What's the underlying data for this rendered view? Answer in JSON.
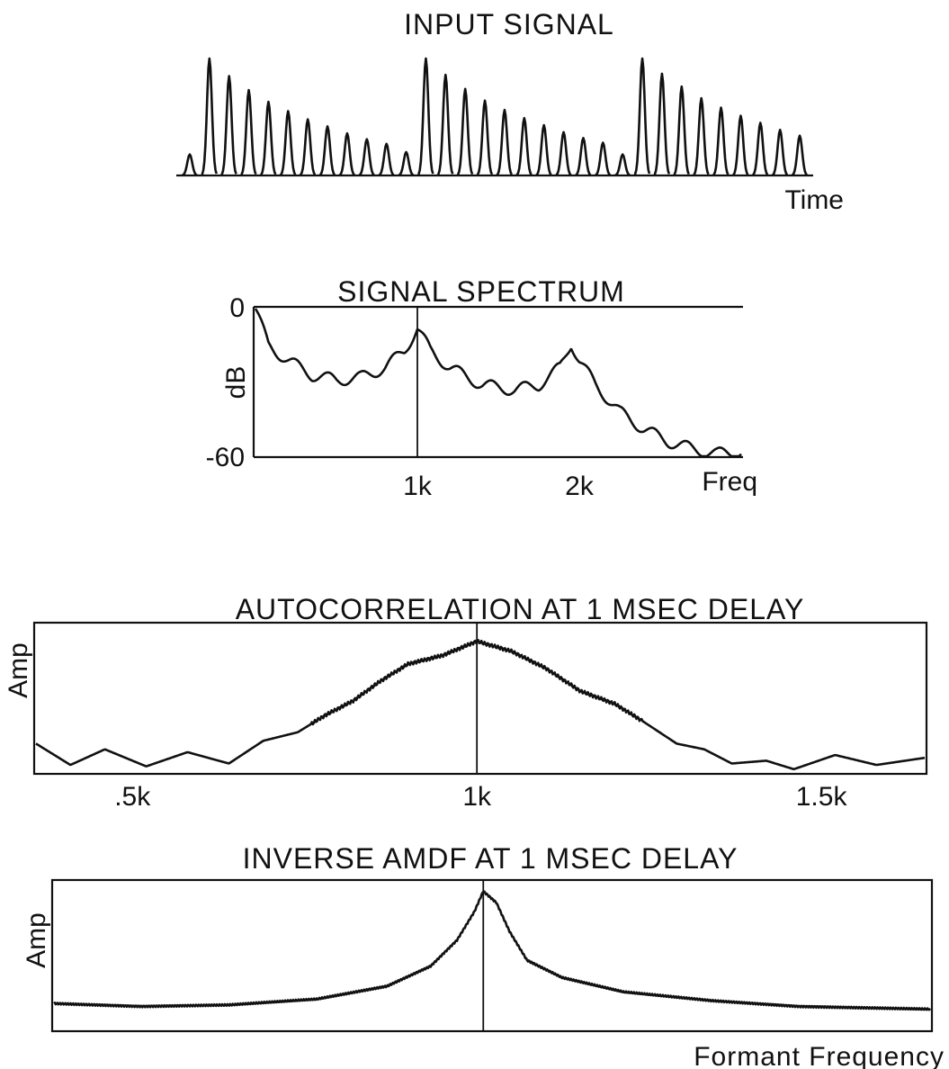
{
  "chart_data": [
    {
      "id": "input-signal",
      "type": "line",
      "title": "INPUT SIGNAL",
      "xlabel": "Time",
      "ylabel": "",
      "pulse_trains": [
        [
          0.18,
          1.0,
          0.85,
          0.73,
          0.63,
          0.55,
          0.48,
          0.42,
          0.36,
          0.31,
          0.27
        ],
        [
          0.2,
          1.0,
          0.86,
          0.74,
          0.64,
          0.56,
          0.49,
          0.43,
          0.37,
          0.32,
          0.28
        ],
        [
          0.18,
          1.0,
          0.87,
          0.76,
          0.66,
          0.58,
          0.51,
          0.45,
          0.39,
          0.34
        ]
      ],
      "grid": false
    },
    {
      "id": "signal-spectrum",
      "type": "line",
      "title": "SIGNAL SPECTRUM",
      "xlabel": "Freq",
      "ylabel": "dB",
      "ylim": [
        -60,
        0
      ],
      "xlim": [
        0,
        3000
      ],
      "yticks": [
        "0",
        "-60"
      ],
      "xticks": [
        {
          "value": 1000,
          "label": "1k"
        },
        {
          "value": 2000,
          "label": "2k"
        }
      ],
      "marker_x": 1000,
      "envelope_points": [
        [
          0,
          0
        ],
        [
          80,
          -15
        ],
        [
          200,
          -21
        ],
        [
          350,
          -27
        ],
        [
          500,
          -29
        ],
        [
          650,
          -28
        ],
        [
          800,
          -24
        ],
        [
          920,
          -17
        ],
        [
          1000,
          -8
        ],
        [
          1080,
          -17
        ],
        [
          1200,
          -24
        ],
        [
          1400,
          -31
        ],
        [
          1600,
          -33
        ],
        [
          1750,
          -31
        ],
        [
          1880,
          -24
        ],
        [
          1950,
          -14
        ],
        [
          2000,
          -21
        ],
        [
          2100,
          -31
        ],
        [
          2250,
          -42
        ],
        [
          2400,
          -49
        ],
        [
          2550,
          -54
        ],
        [
          2700,
          -57
        ],
        [
          2850,
          -59
        ],
        [
          3000,
          -58
        ]
      ],
      "grid": false
    },
    {
      "id": "autocorrelation",
      "type": "line",
      "title": "AUTOCORRELATION AT 1 MSEC DELAY",
      "xlabel": "",
      "ylabel": "Amp",
      "xlim": [
        360,
        1650
      ],
      "xticks": [
        {
          "value": 500,
          "label": ".5k"
        },
        {
          "value": 1000,
          "label": "1k"
        },
        {
          "value": 1500,
          "label": "1.5k"
        }
      ],
      "marker_x": 1000,
      "envelope_points": [
        [
          360,
          0.2
        ],
        [
          410,
          0.05
        ],
        [
          460,
          0.16
        ],
        [
          520,
          0.04
        ],
        [
          580,
          0.14
        ],
        [
          640,
          0.06
        ],
        [
          690,
          0.22
        ],
        [
          740,
          0.28
        ],
        [
          780,
          0.4
        ],
        [
          820,
          0.5
        ],
        [
          860,
          0.64
        ],
        [
          900,
          0.76
        ],
        [
          950,
          0.82
        ],
        [
          1000,
          0.92
        ],
        [
          1050,
          0.85
        ],
        [
          1100,
          0.73
        ],
        [
          1150,
          0.57
        ],
        [
          1200,
          0.48
        ],
        [
          1240,
          0.36
        ],
        [
          1290,
          0.2
        ],
        [
          1330,
          0.16
        ],
        [
          1370,
          0.06
        ],
        [
          1420,
          0.08
        ],
        [
          1460,
          0.02
        ],
        [
          1520,
          0.12
        ],
        [
          1580,
          0.05
        ],
        [
          1650,
          0.1
        ]
      ],
      "grid": false
    },
    {
      "id": "inverse-amdf",
      "type": "line",
      "title": "INVERSE AMDF AT 1 MSEC DELAY",
      "xlabel": "Formant Frequency",
      "ylabel": "Amp",
      "xlim": [
        0,
        1000
      ],
      "marker_x": 490,
      "envelope_points": [
        [
          0,
          0.18
        ],
        [
          100,
          0.16
        ],
        [
          200,
          0.17
        ],
        [
          300,
          0.21
        ],
        [
          380,
          0.3
        ],
        [
          430,
          0.44
        ],
        [
          460,
          0.62
        ],
        [
          480,
          0.82
        ],
        [
          490,
          0.96
        ],
        [
          505,
          0.88
        ],
        [
          520,
          0.68
        ],
        [
          540,
          0.48
        ],
        [
          580,
          0.36
        ],
        [
          650,
          0.26
        ],
        [
          750,
          0.2
        ],
        [
          850,
          0.16
        ],
        [
          1000,
          0.14
        ]
      ],
      "grid": false
    }
  ]
}
